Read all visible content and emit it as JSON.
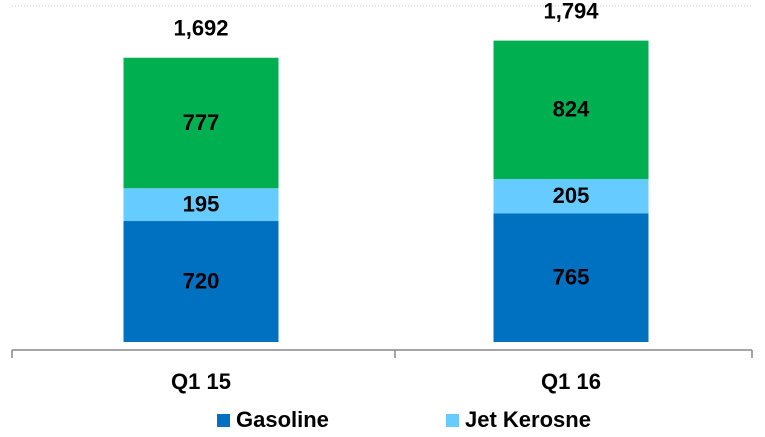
{
  "chart_data": {
    "type": "stacked_bar",
    "categories": [
      "Q1 15",
      "Q1 16"
    ],
    "series": [
      {
        "name": "Gasoline",
        "color": "#0070c0",
        "values": [
          720,
          765
        ]
      },
      {
        "name": "Jet Kerosne",
        "color": "#66ccff",
        "values": [
          195,
          205
        ]
      },
      {
        "color": "#00b050",
        "values": [
          777,
          824
        ]
      }
    ],
    "totals": [
      1692,
      1794
    ],
    "total_labels": [
      "1,692",
      "1,794"
    ],
    "ylim": [
      0,
      2000
    ],
    "legend": "bottom"
  }
}
